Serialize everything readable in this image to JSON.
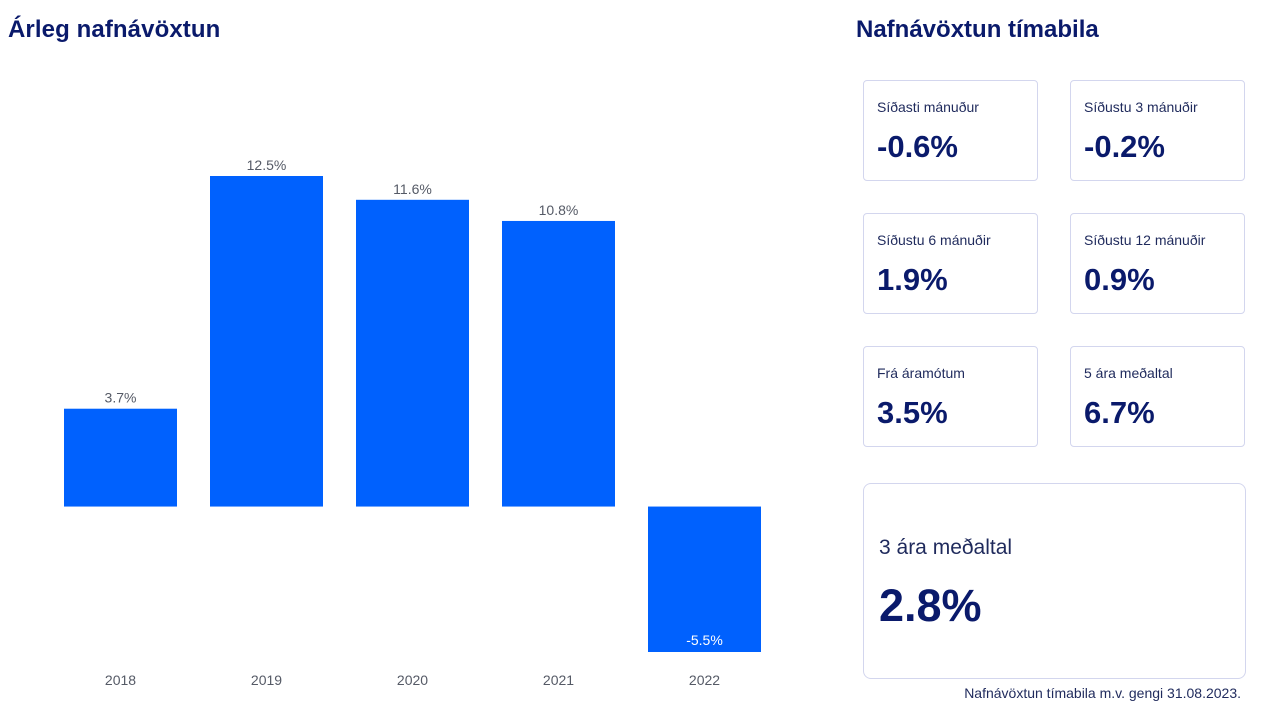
{
  "left_title": "Árleg nafnávöxtun",
  "right_title": "Nafnávöxtun tímabila",
  "chart_data": {
    "type": "bar",
    "title": "Árleg nafnávöxtun",
    "categories": [
      "2018",
      "2019",
      "2020",
      "2021",
      "2022"
    ],
    "values": [
      3.7,
      12.5,
      11.6,
      10.8,
      -5.5
    ],
    "data_labels": [
      "3.7%",
      "12.5%",
      "11.6%",
      "10.8%",
      "-5.5%"
    ],
    "xlabel": "",
    "ylabel": "",
    "ylim": [
      -5.5,
      12.5
    ],
    "grid": false,
    "bar_color": "#0061fe"
  },
  "cards": [
    {
      "label": "Síðasti mánuður",
      "value": "-0.6%"
    },
    {
      "label": "Síðustu 3 mánuðir",
      "value": "-0.2%"
    },
    {
      "label": "Síðustu 6 mánuðir",
      "value": "1.9%"
    },
    {
      "label": "Síðustu 12 mánuðir",
      "value": "0.9%"
    },
    {
      "label": "Frá áramótum",
      "value": "3.5%"
    },
    {
      "label": "5 ára meðaltal",
      "value": "6.7%"
    }
  ],
  "big_card": {
    "label": "3 ára meðaltal",
    "value": "2.8%"
  },
  "footnote": "Nafnávöxtun tímabila m.v. gengi 31.08.2023."
}
